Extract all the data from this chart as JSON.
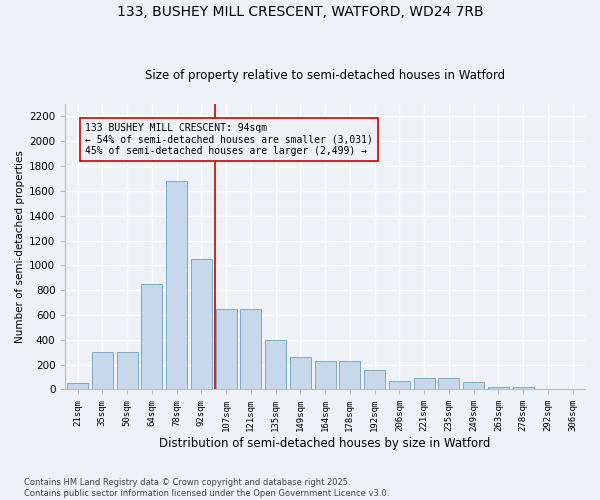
{
  "title1": "133, BUSHEY MILL CRESCENT, WATFORD, WD24 7RB",
  "title2": "Size of property relative to semi-detached houses in Watford",
  "xlabel": "Distribution of semi-detached houses by size in Watford",
  "ylabel": "Number of semi-detached properties",
  "footnote": "Contains HM Land Registry data © Crown copyright and database right 2025.\nContains public sector information licensed under the Open Government Licence v3.0.",
  "bar_color": "#c8d8eb",
  "bar_edge_color": "#7aaac8",
  "categories": [
    "21sqm",
    "35sqm",
    "50sqm",
    "64sqm",
    "78sqm",
    "92sqm",
    "107sqm",
    "121sqm",
    "135sqm",
    "149sqm",
    "164sqm",
    "178sqm",
    "192sqm",
    "206sqm",
    "221sqm",
    "235sqm",
    "249sqm",
    "263sqm",
    "278sqm",
    "292sqm",
    "306sqm"
  ],
  "values": [
    50,
    300,
    300,
    850,
    1680,
    1050,
    650,
    650,
    400,
    260,
    230,
    230,
    160,
    70,
    90,
    90,
    60,
    20,
    20,
    5,
    5
  ],
  "property_line_x": 5.55,
  "property_sqm": "94sqm",
  "pct_smaller": 54,
  "pct_larger": 45,
  "n_smaller": 3031,
  "n_larger": 2499,
  "ylim": [
    0,
    2300
  ],
  "yticks": [
    0,
    200,
    400,
    600,
    800,
    1000,
    1200,
    1400,
    1600,
    1800,
    2000,
    2200
  ],
  "bg_color": "#eef2f7",
  "grid_color": "#ffffff",
  "line_color": "#cc0000",
  "annot_text_line1": "133 BUSHEY MILL CRESCENT: 94sqm",
  "annot_text_line2": "← 54% of semi-detached houses are smaller (3,031)",
  "annot_text_line3": "45% of semi-detached houses are larger (2,499) →"
}
